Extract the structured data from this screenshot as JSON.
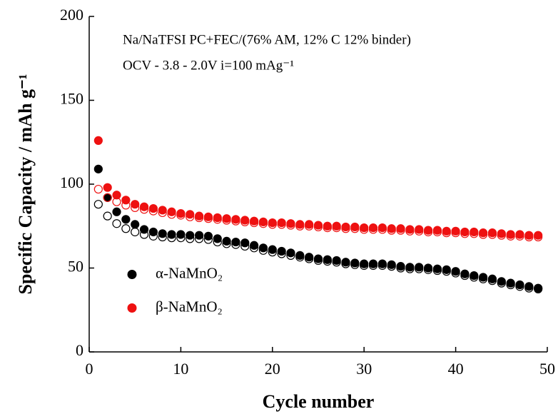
{
  "chart_data": {
    "type": "scatter",
    "annotations": [
      "Na/NaTFSI PC+FEC/(76% AM, 12% C 12% binder)",
      "OCV - 3.8 - 2.0V i=100 mAg⁻¹"
    ],
    "x_label": "Cycle number",
    "y_label": "Specific Capacity / mAh g⁻¹",
    "x": [
      1,
      2,
      3,
      4,
      5,
      6,
      7,
      8,
      9,
      10,
      11,
      12,
      13,
      14,
      15,
      16,
      17,
      18,
      19,
      20,
      21,
      22,
      23,
      24,
      25,
      26,
      27,
      28,
      29,
      30,
      31,
      32,
      33,
      34,
      35,
      36,
      37,
      38,
      39,
      40,
      41,
      42,
      43,
      44,
      45,
      46,
      47,
      48,
      49
    ],
    "series": [
      {
        "name": "α-NaMnO₂",
        "color": "#000000",
        "marker": "filled",
        "values": [
          109,
          92,
          83.5,
          79,
          76,
          73,
          71.5,
          70.5,
          70,
          70,
          69.5,
          69.5,
          69,
          67.5,
          66,
          65.5,
          65,
          63.5,
          62,
          61,
          60,
          59,
          57.5,
          56.5,
          55.5,
          55,
          54.5,
          53.5,
          53,
          52.5,
          52.5,
          52.5,
          52,
          51,
          50.5,
          50.5,
          50,
          49.5,
          49,
          48,
          46.5,
          45.5,
          44.5,
          43.5,
          42,
          41,
          40,
          39,
          38
        ]
      },
      {
        "color": "#000000",
        "marker": "open",
        "values": [
          88,
          81,
          76.5,
          73.5,
          71.5,
          70,
          69,
          68.5,
          68,
          68,
          67.5,
          67.5,
          67,
          65.5,
          64.5,
          64,
          63,
          62,
          60.5,
          59.5,
          58.5,
          57.5,
          56.5,
          55.5,
          54.5,
          54,
          53.5,
          52.5,
          52,
          51.5,
          51.5,
          51.5,
          51,
          50,
          49.5,
          49.5,
          49,
          48.5,
          48,
          47,
          45.5,
          44.5,
          43.5,
          42.5,
          41,
          40,
          39,
          38,
          37.5
        ]
      },
      {
        "name": "β-NaMnO₂",
        "color": "#ee1111",
        "marker": "filled",
        "values": [
          126,
          98,
          93.5,
          90.5,
          88,
          86.5,
          85.5,
          84.5,
          83.5,
          82.5,
          82,
          81,
          80.5,
          80,
          79.5,
          79,
          78.5,
          78,
          77.5,
          77,
          77,
          76.5,
          76,
          76,
          75.5,
          75,
          75,
          74.5,
          74.5,
          74,
          74,
          74,
          73.5,
          73.5,
          73,
          73,
          72.5,
          72.5,
          72,
          72,
          71.5,
          71.5,
          71,
          71,
          70.5,
          70,
          70,
          69.5,
          69.5
        ]
      },
      {
        "color": "#ee1111",
        "marker": "open",
        "values": [
          97,
          92,
          89.5,
          87.5,
          86,
          85,
          84,
          83,
          82,
          81.5,
          80.5,
          80,
          79.5,
          79,
          78.5,
          78,
          77.5,
          77,
          76.5,
          76,
          76,
          75.5,
          75,
          75,
          74.5,
          74,
          74,
          73.5,
          73.5,
          73,
          73,
          73,
          72.5,
          72.5,
          72,
          72,
          71.5,
          71.5,
          71,
          71,
          70.5,
          70.5,
          70,
          70,
          69.5,
          69,
          69,
          68.5,
          68.5
        ]
      }
    ],
    "xlim": [
      0,
      50
    ],
    "ylim": [
      0,
      200
    ],
    "xticks": [
      0,
      10,
      20,
      30,
      40,
      50
    ],
    "yticks": [
      0,
      50,
      100,
      150,
      200
    ],
    "legend": "lower left"
  }
}
